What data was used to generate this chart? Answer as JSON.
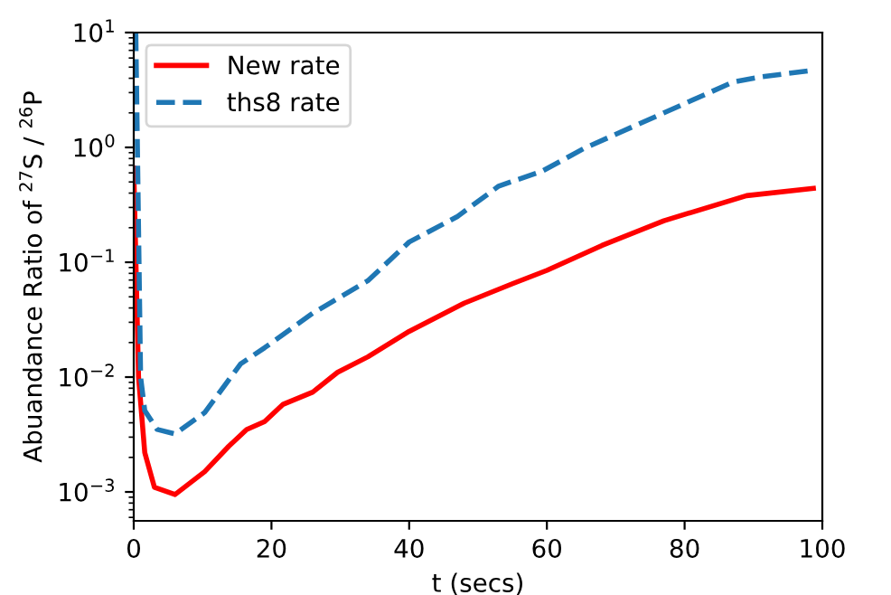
{
  "chart_data": {
    "type": "line",
    "xlabel": "t (secs)",
    "ylabel": "Abuandance Ratio of $^{27}$S / $^{26}$P",
    "log": "y",
    "xlim": [
      0,
      100
    ],
    "xticks": [
      0,
      20,
      40,
      60,
      80,
      100
    ],
    "ylim": [
      0.00056,
      10
    ],
    "yticks": [
      {
        "value": 0.001,
        "label": "10$^{−3}$"
      },
      {
        "value": 0.01,
        "label": "10$^{−2}$"
      },
      {
        "value": 0.1,
        "label": "10$^{−1}$"
      },
      {
        "value": 1,
        "label": "10$^{0}$"
      },
      {
        "value": 10,
        "label": "10$^{1}$"
      }
    ],
    "legend": "top left",
    "grid": false,
    "series": [
      {
        "name": "New rate",
        "color": "#ff0000",
        "line_style": "solid",
        "x": [
          0,
          0.7,
          1.6,
          3,
          6,
          10.3,
          13.8,
          16.4,
          19,
          21.7,
          26,
          29.6,
          34,
          40,
          48,
          55,
          60,
          68,
          77,
          89,
          98.7
        ],
        "values": [
          0.66,
          0.01,
          0.0022,
          0.0011,
          0.00095,
          0.0015,
          0.0025,
          0.0035,
          0.0041,
          0.0058,
          0.0074,
          0.011,
          0.015,
          0.025,
          0.044,
          0.065,
          0.085,
          0.14,
          0.23,
          0.38,
          0.44
        ]
      },
      {
        "name": "ths8 rate",
        "color": "#1f77b4",
        "line_style": "dashed",
        "x": [
          0.3,
          1,
          1.6,
          3.4,
          6,
          10.3,
          15.5,
          19,
          26,
          34,
          40,
          47,
          53,
          59.3,
          65.4,
          77,
          87,
          91,
          98.7
        ],
        "values": [
          10,
          0.01,
          0.0051,
          0.0035,
          0.0032,
          0.0049,
          0.013,
          0.018,
          0.036,
          0.069,
          0.15,
          0.25,
          0.46,
          0.62,
          0.98,
          2.0,
          3.7,
          4.1,
          4.7
        ]
      }
    ]
  }
}
